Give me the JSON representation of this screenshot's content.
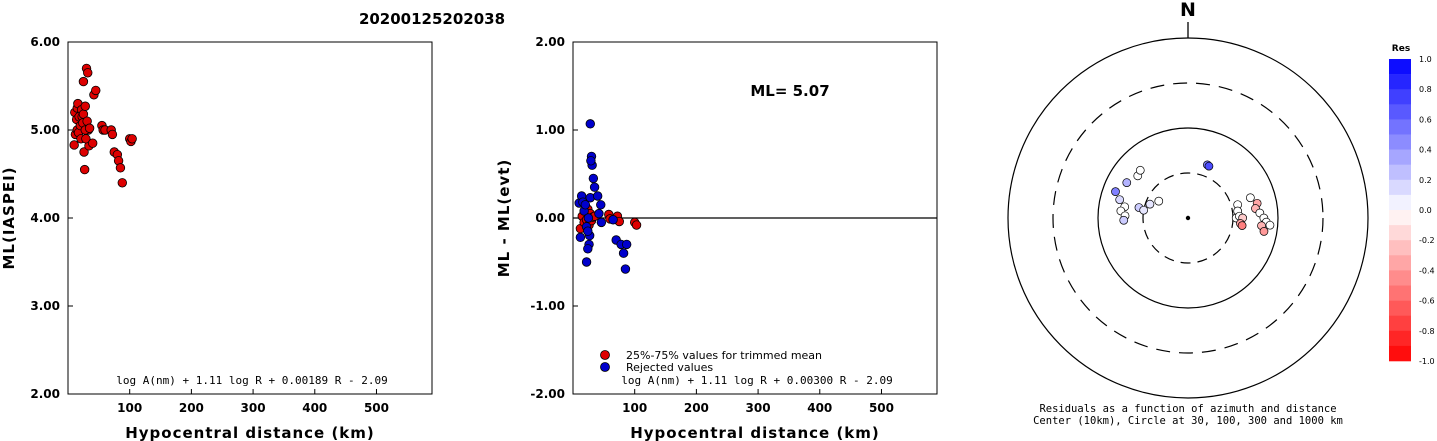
{
  "title": "20200125202038",
  "colors": {
    "accepted": "#dd0000",
    "rejected": "#0000cc",
    "axis": "#000000"
  },
  "chart_data": [
    {
      "type": "scatter",
      "xlabel": "Hypocentral distance (km)",
      "ylabel": "ML(IASPEI)",
      "xlim": [
        0,
        590
      ],
      "ylim": [
        2.0,
        6.0
      ],
      "x_ticks": [
        100,
        200,
        300,
        400,
        500
      ],
      "x_tick_labels": [
        "100",
        "200",
        "300",
        "400",
        "500"
      ],
      "y_ticks": [
        2,
        3,
        4,
        5,
        6
      ],
      "y_tick_labels": [
        "2.00",
        "3.00",
        "4.00",
        "5.00",
        "6.00"
      ],
      "formula": "log A(nm) + 1.11 log R + 0.00189 R - 2.09",
      "series": [
        {
          "x": [
            10,
            11,
            12,
            14,
            15,
            16,
            15,
            17,
            18,
            20,
            21,
            22,
            23,
            24,
            25,
            26,
            27,
            25,
            28,
            30,
            32,
            33,
            34,
            28,
            29,
            31,
            35,
            40,
            42,
            45,
            55,
            57,
            60,
            70,
            72,
            75,
            80,
            82,
            85,
            88,
            100,
            102,
            104
          ],
          "y": [
            4.83,
            5.2,
            4.95,
            5.12,
            5.25,
            5.3,
            5.0,
            4.97,
            5.15,
            5.05,
            4.9,
            5.23,
            5.15,
            5.08,
            5.18,
            4.75,
            4.55,
            5.55,
            5.27,
            5.7,
            5.65,
            5.0,
            4.82,
            5.0,
            4.9,
            5.1,
            5.02,
            4.85,
            5.4,
            5.45,
            5.05,
            5.0,
            5.0,
            5.0,
            4.95,
            4.75,
            4.72,
            4.65,
            4.57,
            4.4,
            4.9,
            4.87,
            4.9
          ]
        }
      ]
    },
    {
      "type": "scatter",
      "xlabel": "Hypocentral distance (km)",
      "ylabel": "ML - ML(evt)",
      "xlim": [
        0,
        590
      ],
      "ylim": [
        -2.0,
        2.0
      ],
      "x_ticks": [
        100,
        200,
        300,
        400,
        500
      ],
      "x_tick_labels": [
        "100",
        "200",
        "300",
        "400",
        "500"
      ],
      "y_ticks": [
        -2,
        -1,
        0,
        1,
        2
      ],
      "y_tick_labels": [
        "-2.00",
        "-1.00",
        "0.00",
        "1.00",
        "2.00"
      ],
      "annotation": "ML= 5.07",
      "formula": "log A(nm) + 1.11 log R + 0.00300 R - 2.09",
      "reference_line_y": 0,
      "series": [
        {
          "name": "25%-75% values for trimmed mean",
          "color": "#dd0000",
          "x": [
            12,
            15,
            18,
            20,
            22,
            24,
            26,
            28,
            30,
            32,
            35,
            58,
            60,
            72,
            75,
            100,
            103
          ],
          "y": [
            -0.12,
            0.02,
            -0.05,
            0.08,
            -0.02,
            0.1,
            -0.08,
            0.05,
            -0.03,
            0.01,
            0.02,
            0.04,
            -0.01,
            0.02,
            -0.04,
            -0.05,
            -0.08
          ]
        },
        {
          "name": "Rejected values",
          "color": "#0000cc",
          "x": [
            10,
            12,
            14,
            16,
            18,
            20,
            22,
            25,
            26,
            28,
            30,
            31,
            33,
            35,
            28,
            29,
            27,
            24,
            40,
            42,
            45,
            46,
            65,
            70,
            78,
            82,
            85,
            87,
            22,
            24
          ],
          "y": [
            0.17,
            -0.22,
            0.25,
            0.18,
            0.08,
            0.15,
            -0.1,
            0.0,
            -0.3,
            0.23,
            0.7,
            0.6,
            0.45,
            0.35,
            1.07,
            0.65,
            -0.2,
            -0.35,
            0.25,
            0.05,
            0.15,
            -0.05,
            -0.02,
            -0.25,
            -0.3,
            -0.4,
            -0.58,
            -0.3,
            -0.5,
            -0.15
          ]
        }
      ]
    },
    {
      "type": "scatter",
      "subtype": "polar-residuals",
      "north_label": "N",
      "caption_lines": [
        "Residuals as a function of azimuth and distance",
        "Center (10km), Circle at 30, 100, 300 and 1000 km"
      ],
      "rings_km": [
        30,
        100,
        300,
        1000
      ],
      "points": [
        {
          "az": 280,
          "dist": 60,
          "res": 0.0
        },
        {
          "az": 276,
          "dist": 65,
          "res": 0.0
        },
        {
          "az": 285,
          "dist": 70,
          "res": 0.15
        },
        {
          "az": 272,
          "dist": 58,
          "res": 0.0
        },
        {
          "az": 268,
          "dist": 60,
          "res": 0.2
        },
        {
          "az": 300,
          "dist": 70,
          "res": 0.3
        },
        {
          "az": 290,
          "dist": 80,
          "res": 0.5
        },
        {
          "az": 310,
          "dist": 62,
          "res": 0.0
        },
        {
          "az": 315,
          "dist": 65,
          "res": 0.0
        },
        {
          "az": 282,
          "dist": 38,
          "res": 0.2
        },
        {
          "az": 290,
          "dist": 28,
          "res": 0.1
        },
        {
          "az": 300,
          "dist": 25,
          "res": 0.0
        },
        {
          "az": 280,
          "dist": 30,
          "res": 0.1
        },
        {
          "az": 20,
          "dist": 48,
          "res": 0.5
        },
        {
          "az": 22,
          "dist": 47,
          "res": 0.7
        },
        {
          "az": 75,
          "dist": 40,
          "res": 0.0
        },
        {
          "az": 82,
          "dist": 38,
          "res": 0.0
        },
        {
          "az": 90,
          "dist": 35,
          "res": 0.0
        },
        {
          "az": 88,
          "dist": 40,
          "res": 0.0
        },
        {
          "az": 90,
          "dist": 45,
          "res": -0.2
        },
        {
          "az": 96,
          "dist": 42,
          "res": -0.35
        },
        {
          "az": 98,
          "dist": 45,
          "res": -0.5
        },
        {
          "az": 72,
          "dist": 62,
          "res": 0.0
        },
        {
          "az": 78,
          "dist": 70,
          "res": -0.35
        },
        {
          "az": 82,
          "dist": 66,
          "res": -0.3
        },
        {
          "az": 86,
          "dist": 72,
          "res": 0.0
        },
        {
          "az": 90,
          "dist": 78,
          "res": 0.0
        },
        {
          "az": 93,
          "dist": 82,
          "res": 0.0
        },
        {
          "az": 96,
          "dist": 75,
          "res": -0.3
        },
        {
          "az": 100,
          "dist": 80,
          "res": -0.4
        },
        {
          "az": 95,
          "dist": 88,
          "res": 0.0
        }
      ],
      "colorbar": {
        "title": "Res",
        "ticks": [
          1.0,
          0.8,
          0.6,
          0.4,
          0.2,
          0.0,
          -0.2,
          -0.4,
          -0.6,
          -0.8,
          -1.0
        ],
        "tick_labels": [
          "1.0",
          "0.8",
          "0.6",
          "0.4",
          "0.2",
          "0.0",
          "-0.2",
          "-0.4",
          "-0.6",
          "-0.8",
          "-1.0"
        ]
      }
    }
  ],
  "legend": {
    "accepted_label": "25%-75% values for trimmed mean",
    "rejected_label": "Rejected values"
  }
}
